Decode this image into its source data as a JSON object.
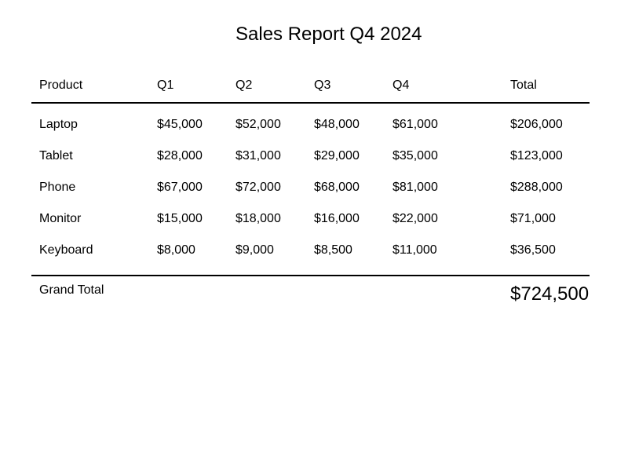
{
  "report": {
    "title": "Sales Report Q4 2024"
  },
  "table": {
    "headers": [
      "Product",
      "Q1",
      "Q2",
      "Q3",
      "Q4",
      "Total"
    ],
    "rows": [
      [
        "Laptop",
        "$45,000",
        "$52,000",
        "$48,000",
        "$61,000",
        "$206,000"
      ],
      [
        "Tablet",
        "$28,000",
        "$31,000",
        "$29,000",
        "$35,000",
        "$123,000"
      ],
      [
        "Phone",
        "$67,000",
        "$72,000",
        "$68,000",
        "$81,000",
        "$288,000"
      ],
      [
        "Monitor",
        "$15,000",
        "$18,000",
        "$16,000",
        "$22,000",
        "$71,000"
      ],
      [
        "Keyboard",
        "$8,000",
        "$9,000",
        "$8,500",
        "$11,000",
        "$36,500"
      ]
    ],
    "grand_total_label": "Grand Total",
    "grand_total_value": "$724,500"
  }
}
